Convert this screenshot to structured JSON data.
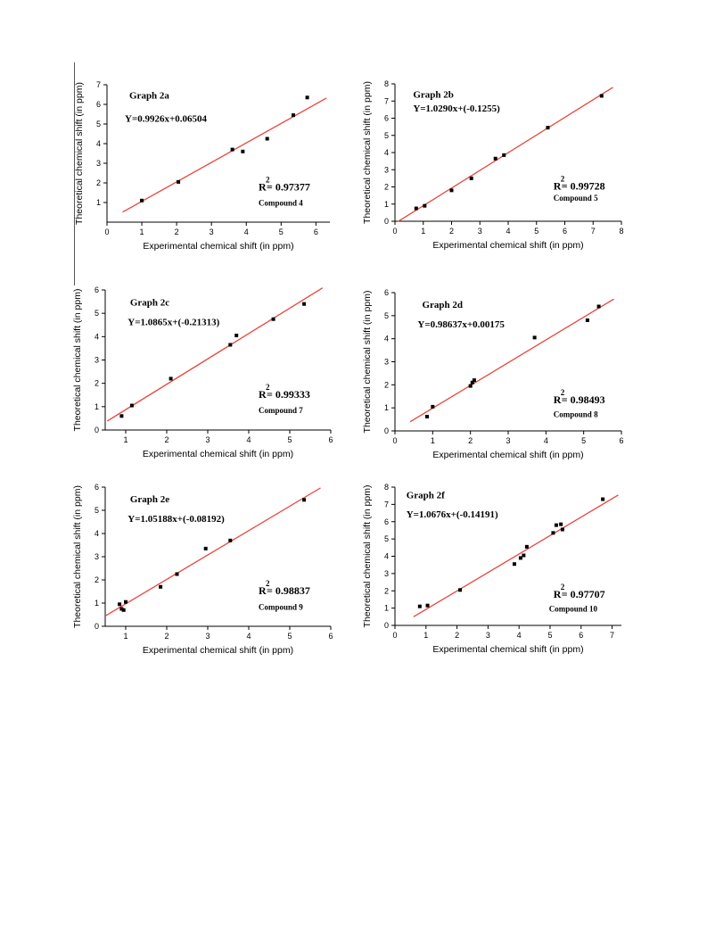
{
  "colors": {
    "fit_line": "#e8453c",
    "points": "#000000",
    "axes": "#000000"
  },
  "chart_data": [
    {
      "type": "scatter",
      "title": "Graph 2a",
      "equation": "Y=0.9926x+0.06504",
      "r2_label": "R",
      "r2_sup": "2",
      "r2_value": "= 0.97377",
      "compound": "Compound 4",
      "xlabel": "Experimental chemical shift (in ppm)",
      "ylabel": "Theoretical chemical shift (in ppm)",
      "xlim": [
        0,
        6.4
      ],
      "ylim": [
        0,
        7
      ],
      "xticks": [
        0,
        1,
        2,
        3,
        4,
        5,
        6
      ],
      "yticks": [
        1,
        2,
        3,
        4,
        5,
        6,
        7
      ],
      "slope": 0.9926,
      "intercept": 0.06504,
      "fit_range": [
        0.45,
        6.3
      ],
      "points": [
        [
          1.0,
          1.1
        ],
        [
          2.05,
          2.05
        ],
        [
          3.6,
          3.7
        ],
        [
          3.9,
          3.6
        ],
        [
          4.6,
          4.25
        ],
        [
          5.35,
          5.45
        ],
        [
          5.75,
          6.35
        ]
      ]
    },
    {
      "type": "scatter",
      "title": "Graph 2b",
      "equation": "Y=1.0290x+(-0.1255)",
      "r2_label": "R",
      "r2_sup": "2",
      "r2_value": "= 0.99728",
      "compound": "Compound 5",
      "xlabel": "Experimental chemical shift (in ppm)",
      "ylabel": "Theoretical chemical shift (in ppm)",
      "xlim": [
        0,
        8
      ],
      "ylim": [
        0,
        8
      ],
      "xticks": [
        0,
        1,
        2,
        3,
        4,
        5,
        6,
        7,
        8
      ],
      "yticks": [
        0,
        1,
        2,
        3,
        4,
        5,
        6,
        7,
        8
      ],
      "slope": 1.029,
      "intercept": -0.1255,
      "fit_range": [
        0.1,
        7.7
      ],
      "points": [
        [
          0.75,
          0.75
        ],
        [
          1.05,
          0.9
        ],
        [
          2.0,
          1.8
        ],
        [
          2.7,
          2.5
        ],
        [
          3.55,
          3.65
        ],
        [
          3.85,
          3.85
        ],
        [
          5.4,
          5.45
        ],
        [
          7.3,
          7.3
        ]
      ]
    },
    {
      "type": "scatter",
      "title": "Graph 2c",
      "equation": "Y=1.0865x+(-0.21313)",
      "r2_label": "R",
      "r2_sup": "2",
      "r2_value": "= 0.99333",
      "compound": "Compound 7",
      "xlabel": "Experimental chemical shift (in ppm)",
      "ylabel": "Theoretical chemical shift (in ppm)",
      "xlim": [
        0.5,
        6
      ],
      "ylim": [
        0,
        6
      ],
      "xticks": [
        1,
        2,
        3,
        4,
        5,
        6
      ],
      "yticks": [
        0,
        1,
        2,
        3,
        4,
        5,
        6
      ],
      "slope": 1.0865,
      "intercept": -0.21313,
      "fit_range": [
        0.55,
        5.8
      ],
      "points": [
        [
          0.9,
          0.6
        ],
        [
          1.15,
          1.05
        ],
        [
          2.1,
          2.2
        ],
        [
          3.55,
          3.65
        ],
        [
          3.7,
          4.05
        ],
        [
          4.6,
          4.75
        ],
        [
          5.35,
          5.4
        ]
      ]
    },
    {
      "type": "scatter",
      "title": "Graph 2d",
      "equation": "Y=0.98637x+0.00175",
      "r2_label": "R",
      "r2_sup": "2",
      "r2_value": "= 0.98493",
      "compound": "Compound 8",
      "xlabel": "Experimental chemical shift (in ppm)",
      "ylabel": "Theoretical chemical shift (in ppm)",
      "xlim": [
        0,
        6
      ],
      "ylim": [
        0,
        6
      ],
      "xticks": [
        0,
        1,
        2,
        3,
        4,
        5,
        6
      ],
      "yticks": [
        0,
        1,
        2,
        3,
        4,
        5,
        6
      ],
      "slope": 0.98637,
      "intercept": 0.00175,
      "fit_range": [
        0.4,
        5.8
      ],
      "points": [
        [
          0.85,
          0.62
        ],
        [
          1.0,
          1.05
        ],
        [
          2.0,
          1.95
        ],
        [
          2.05,
          2.1
        ],
        [
          2.1,
          2.2
        ],
        [
          3.7,
          4.05
        ],
        [
          5.1,
          4.8
        ],
        [
          5.4,
          5.4
        ]
      ]
    },
    {
      "type": "scatter",
      "title": "Graph 2e",
      "equation": "Y=1.05188x+(-0.08192)",
      "r2_label": "R",
      "r2_sup": "2",
      "r2_value": "= 0.98837",
      "compound": "Compound 9",
      "xlabel": "Experimental chemical shift (in ppm)",
      "ylabel": "Theoretical chemical shift (in ppm)",
      "xlim": [
        0.5,
        6
      ],
      "ylim": [
        0,
        6
      ],
      "xticks": [
        1,
        2,
        3,
        4,
        5,
        6
      ],
      "yticks": [
        0,
        1,
        2,
        3,
        4,
        5,
        6
      ],
      "slope": 1.05188,
      "intercept": -0.08192,
      "fit_range": [
        0.5,
        5.75
      ],
      "points": [
        [
          0.85,
          0.95
        ],
        [
          0.9,
          0.75
        ],
        [
          0.95,
          0.7
        ],
        [
          1.0,
          1.05
        ],
        [
          1.85,
          1.7
        ],
        [
          2.25,
          2.25
        ],
        [
          2.95,
          3.35
        ],
        [
          3.55,
          3.7
        ],
        [
          5.35,
          5.45
        ]
      ]
    },
    {
      "type": "scatter",
      "title": "Graph 2f",
      "equation": "Y=1.0676x+(-0.14191)",
      "r2_label": "R",
      "r2_sup": "2",
      "r2_value": "= 0.97707",
      "compound": "Compound 10",
      "xlabel": "Experimental chemical shift (in ppm)",
      "ylabel": "Theoretical chemical shift (in ppm)",
      "xlim": [
        0,
        7.3
      ],
      "ylim": [
        0,
        8
      ],
      "xticks": [
        0,
        1,
        2,
        3,
        4,
        5,
        6,
        7
      ],
      "yticks": [
        0,
        1,
        2,
        3,
        4,
        5,
        6,
        7,
        8
      ],
      "slope": 1.0676,
      "intercept": -0.14191,
      "fit_range": [
        0.6,
        7.2
      ],
      "points": [
        [
          0.8,
          1.1
        ],
        [
          1.05,
          1.15
        ],
        [
          2.1,
          2.05
        ],
        [
          3.85,
          3.55
        ],
        [
          4.05,
          3.9
        ],
        [
          4.15,
          4.05
        ],
        [
          4.25,
          4.55
        ],
        [
          5.1,
          5.35
        ],
        [
          5.2,
          5.8
        ],
        [
          5.35,
          5.85
        ],
        [
          5.4,
          5.55
        ],
        [
          6.7,
          7.3
        ]
      ]
    }
  ]
}
